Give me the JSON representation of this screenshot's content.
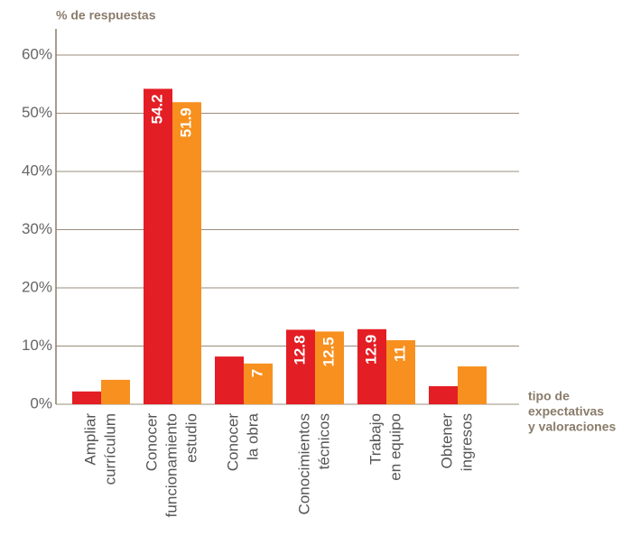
{
  "chart_data": {
    "type": "bar",
    "ylabel": "% de respuestas",
    "xlabel": [
      "tipo de",
      "expectativas",
      "y valoraciones"
    ],
    "categories": [
      [
        "Ampliar",
        "currículum"
      ],
      [
        "Conocer",
        "funcionamiento",
        "estudio"
      ],
      [
        "Conocer",
        "la obra"
      ],
      [
        "Conocimientos",
        "técnicos"
      ],
      [
        "Trabajo",
        "en equipo"
      ],
      [
        "Obtener",
        "ingresos"
      ]
    ],
    "series": [
      {
        "color": "#e31e24",
        "values": [
          2.2,
          54.2,
          8.2,
          12.8,
          12.9,
          3.1
        ],
        "value_labels": [
          null,
          "54.2",
          null,
          "12.8",
          "12.9",
          null
        ]
      },
      {
        "color": "#f7901e",
        "values": [
          4.2,
          51.9,
          7,
          12.5,
          11,
          6.5
        ],
        "value_labels": [
          null,
          "51.9",
          "7",
          "12.5",
          "11",
          null
        ]
      }
    ],
    "ylim": [
      0,
      60
    ],
    "yticks": [
      {
        "value": 0,
        "label": "0%"
      },
      {
        "value": 10,
        "label": "10%"
      },
      {
        "value": 20,
        "label": "20%"
      },
      {
        "value": 30,
        "label": "30%"
      },
      {
        "value": 40,
        "label": "40%"
      },
      {
        "value": 50,
        "label": "50%"
      },
      {
        "value": 60,
        "label": "60%"
      }
    ],
    "grid": true
  }
}
